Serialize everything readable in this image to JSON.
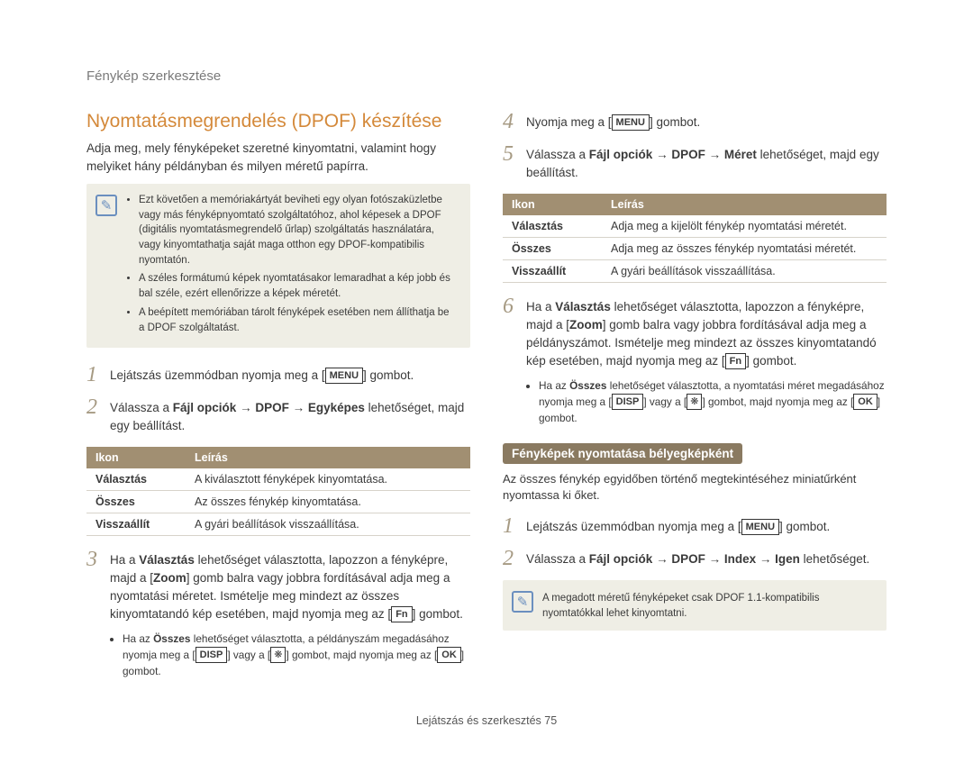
{
  "breadcrumb": "Fénykép szerkesztése",
  "section_title": "Nyomtatásmegrendelés (DPOF) készítése",
  "intro": "Adja meg, mely fényképeket szeretné kinyomtatni, valamint hogy melyiket hány példányban és milyen méretű papírra.",
  "note1": {
    "items": [
      "Ezt követően a memóriakártyát beviheti egy olyan fotószaküzletbe vagy más fényképnyomtató szolgáltatóhoz, ahol képesek a DPOF (digitális nyomtatásmegrendelő űrlap) szolgáltatás használatára, vagy kinyomtathatja saját maga otthon egy DPOF-kompatibilis nyomtatón.",
      "A széles formátumú képek nyomtatásakor lemaradhat a kép jobb és bal széle, ezért ellenőrizze a képek méretét.",
      "A beépített memóriában tárolt fényképek esetében nem állíthatja be a DPOF szolgáltatást."
    ]
  },
  "left_steps": {
    "s1_pre": "Lejátszás üzemmódban nyomja meg a [",
    "s1_btn": "MENU",
    "s1_post": "] gombot.",
    "s2": "Válassza a <b>Fájl opciók</b> → <b>DPOF</b> → <b>Egyképes</b> lehetőséget, majd egy beállítást.",
    "table": {
      "headers": [
        "Ikon",
        "Leírás"
      ],
      "rows": [
        [
          "Választás",
          "A kiválasztott fényképek kinyomtatása."
        ],
        [
          "Összes",
          "Az összes fénykép kinyomtatása."
        ],
        [
          "Visszaállít",
          "A gyári beállítások visszaállítása."
        ]
      ]
    },
    "s3_a": "Ha a <b>Választás</b> lehetőséget választotta, lapozzon a fényképre, majd a [<b>Zoom</b>] gomb balra vagy jobbra fordításával adja meg a nyomtatási méretet. Ismételje meg mindezt az összes kinyomtatandó kép esetében, majd nyomja meg az [",
    "s3_btn": "Fn",
    "s3_b": "] gombot.",
    "s3_sub_a": "Ha az <b>Összes</b> lehetőséget választotta, a példányszám megadásához nyomja meg a [",
    "s3_sub_btn1": "DISP",
    "s3_sub_mid": "] vagy a [",
    "s3_sub_btn2": "❋",
    "s3_sub_b": "] gombot, majd nyomja meg az [",
    "s3_sub_btn3": "OK",
    "s3_sub_c": "] gombot."
  },
  "right_steps": {
    "s4_pre": "Nyomja meg a [",
    "s4_btn": "MENU",
    "s4_post": "] gombot.",
    "s5": "Válassza a <b>Fájl opciók</b> → <b>DPOF</b> → <b>Méret</b> lehetőséget, majd egy beállítást.",
    "table": {
      "headers": [
        "Ikon",
        "Leírás"
      ],
      "rows": [
        [
          "Választás",
          "Adja meg a kijelölt fénykép nyomtatási méretét."
        ],
        [
          "Összes",
          "Adja meg az összes fénykép nyomtatási méretét."
        ],
        [
          "Visszaállít",
          "A gyári beállítások visszaállítása."
        ]
      ]
    },
    "s6_a": "Ha a <b>Választás</b> lehetőséget választotta, lapozzon a fényképre, majd a [<b>Zoom</b>] gomb balra vagy jobbra fordításával adja meg a példányszámot. Ismételje meg mindezt az összes kinyomtatandó kép esetében, majd nyomja meg az [",
    "s6_btn": "Fn",
    "s6_b": "] gombot.",
    "s6_sub_a": "Ha az <b>Összes</b> lehetőséget választotta, a nyomtatási méret megadásához nyomja meg a [",
    "s6_sub_btn1": "DISP",
    "s6_sub_mid": "] vagy a [",
    "s6_sub_btn2": "❋",
    "s6_sub_b": "] gombot, majd nyomja meg az [",
    "s6_sub_btn3": "OK",
    "s6_sub_c": "] gombot."
  },
  "subsection": {
    "title": "Fényképek nyomtatása bélyegképként",
    "intro": "Az összes fénykép egyidőben történő megtekintéséhez miniatűrként nyomtassa ki őket.",
    "s1_pre": "Lejátszás üzemmódban nyomja meg a [",
    "s1_btn": "MENU",
    "s1_post": "] gombot.",
    "s2": "Válassza a <b>Fájl opciók</b> → <b>DPOF</b> → <b>Index</b> → <b>Igen</b> lehetőséget."
  },
  "note2": "A megadott méretű fényképeket csak DPOF 1.1-kompatibilis nyomtatókkal lehet kinyomtatni.",
  "footer": "Lejátszás és szerkesztés  75"
}
